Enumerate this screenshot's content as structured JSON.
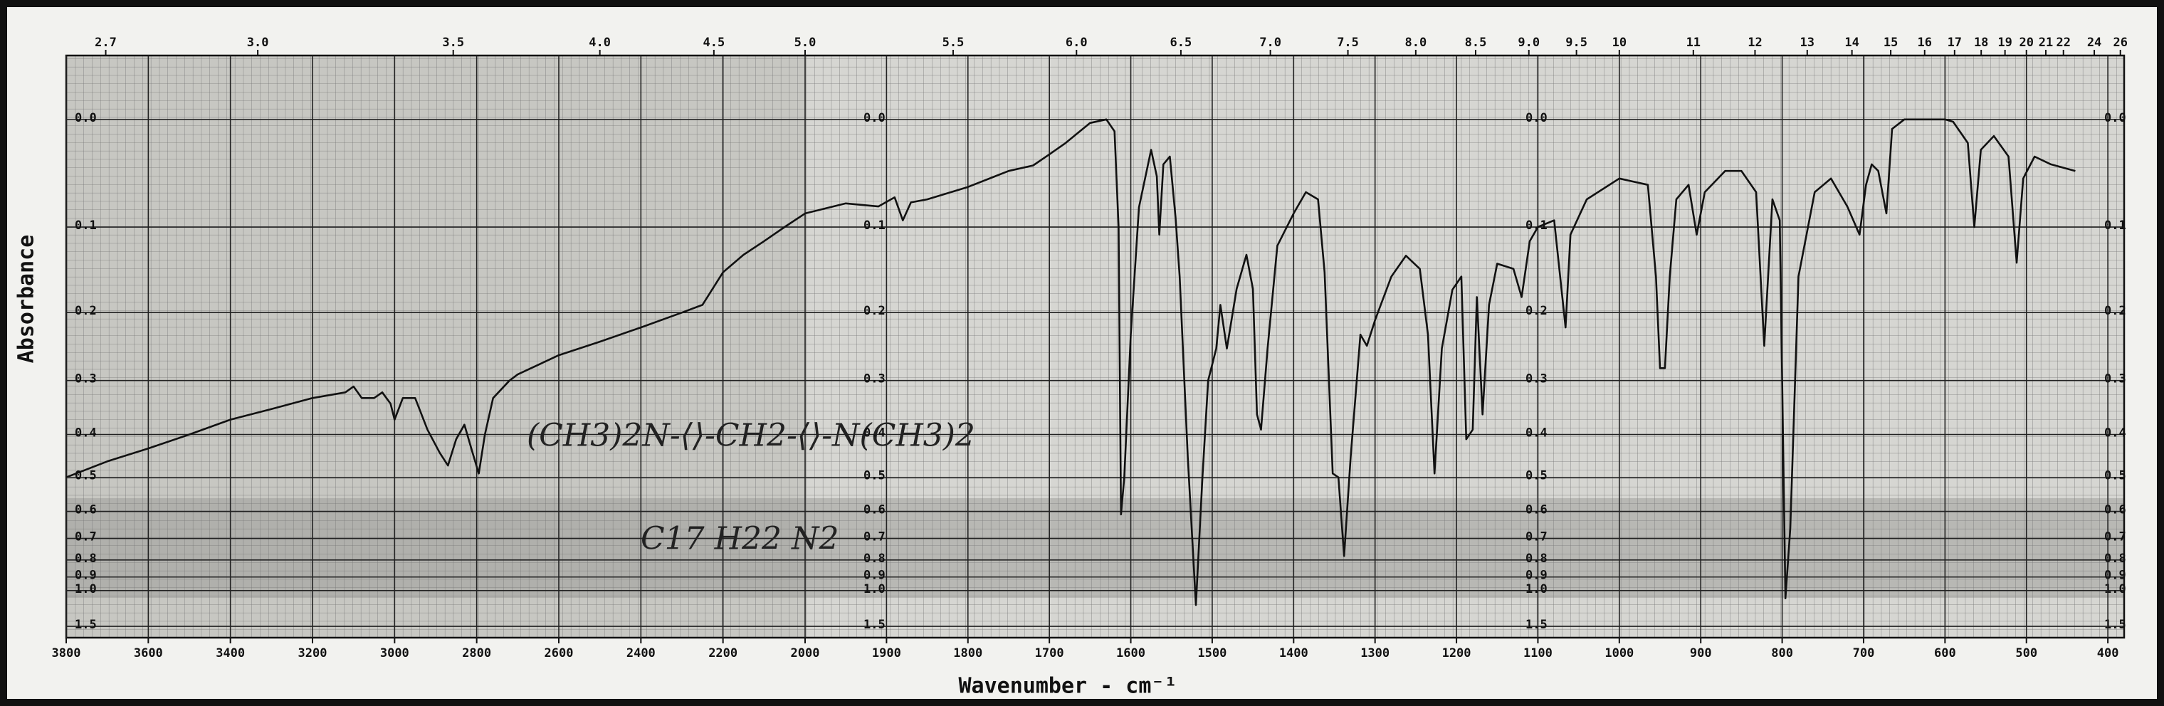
{
  "chart_data": {
    "type": "line",
    "yscale": "absorbance",
    "xscale_break": 2000,
    "ylabel": "Absorbance",
    "xlabel": "Wavenumber - cm⁻¹",
    "annotations": [
      "(CH3)2N-⟨⟩-CH2-⟨⟩-N(CH3)2",
      "C17 H22 N2"
    ],
    "xlim": [
      3800,
      380
    ],
    "xticks": [
      3800,
      3600,
      3400,
      3200,
      3000,
      2800,
      2600,
      2400,
      2200,
      2000,
      1900,
      1800,
      1700,
      1600,
      1500,
      1400,
      1300,
      1200,
      1100,
      1000,
      900,
      800,
      700,
      600,
      500,
      400
    ],
    "x2ticks": [
      2.7,
      {
        "value": 3,
        "label": "3.0"
      },
      3.5,
      {
        "value": 4,
        "label": "4.0"
      },
      4.5,
      {
        "value": 5,
        "label": "5.0"
      },
      5.5,
      {
        "value": 6,
        "label": "6.0"
      },
      6.5,
      {
        "value": 7,
        "label": "7.0"
      },
      7.5,
      {
        "value": 8,
        "label": "8.0"
      },
      8.5,
      {
        "value": 9,
        "label": "9.0"
      },
      9.5,
      10,
      11,
      12,
      13,
      14,
      15,
      16,
      17,
      18,
      19,
      20,
      21,
      22,
      24,
      26
    ],
    "ylim": [
      -0.05,
      2
    ],
    "yticks": [
      {
        "value": 0,
        "label": "0.0"
      },
      0.1,
      0.2,
      0.3,
      0.4,
      0.5,
      0.6,
      0.7,
      0.8,
      0.9,
      {
        "value": 1,
        "label": "1.0"
      },
      1.5
    ],
    "grid": true,
    "x": [
      3800,
      3700,
      3600,
      3500,
      3400,
      3300,
      3200,
      3120,
      3100,
      3080,
      3050,
      3030,
      3010,
      3000,
      2980,
      2950,
      2920,
      2890,
      2870,
      2850,
      2830,
      2810,
      2795,
      2780,
      2760,
      2720,
      2700,
      2600,
      2500,
      2400,
      2300,
      2250,
      2200,
      2150,
      2100,
      2050,
      2000,
      1950,
      1910,
      1890,
      1880,
      1870,
      1850,
      1800,
      1750,
      1720,
      1700,
      1680,
      1650,
      1630,
      1620,
      1615,
      1612,
      1608,
      1600,
      1590,
      1575,
      1568,
      1565,
      1560,
      1552,
      1545,
      1540,
      1530,
      1520,
      1512,
      1505,
      1495,
      1490,
      1482,
      1470,
      1458,
      1450,
      1445,
      1440,
      1432,
      1420,
      1400,
      1385,
      1370,
      1362,
      1352,
      1345,
      1338,
      1330,
      1318,
      1310,
      1300,
      1280,
      1262,
      1245,
      1235,
      1227,
      1218,
      1205,
      1194,
      1188,
      1180,
      1175,
      1168,
      1160,
      1150,
      1130,
      1120,
      1110,
      1100,
      1080,
      1066,
      1060,
      1040,
      1000,
      965,
      955,
      950,
      944,
      938,
      930,
      915,
      905,
      895,
      870,
      850,
      832,
      822,
      812,
      803,
      796,
      790,
      780,
      760,
      740,
      720,
      705,
      697,
      690,
      682,
      672,
      665,
      650,
      600,
      590,
      572,
      564,
      556,
      540,
      522,
      512,
      504,
      490,
      470,
      440
    ],
    "series": [
      {
        "name": "Absorbance",
        "color": "#111111",
        "values": [
          0.5,
          0.46,
          0.43,
          0.4,
          0.37,
          0.35,
          0.33,
          0.32,
          0.31,
          0.33,
          0.33,
          0.32,
          0.34,
          0.37,
          0.33,
          0.33,
          0.39,
          0.44,
          0.47,
          0.41,
          0.38,
          0.44,
          0.49,
          0.4,
          0.33,
          0.3,
          0.29,
          0.26,
          0.24,
          0.22,
          0.2,
          0.19,
          0.15,
          0.13,
          0.115,
          0.1,
          0.086,
          0.076,
          0.079,
          0.07,
          0.093,
          0.075,
          0.072,
          0.06,
          0.045,
          0.04,
          0.03,
          0.02,
          0.003,
          0.0,
          0.01,
          0.1,
          0.61,
          0.5,
          0.23,
          0.08,
          0.026,
          0.05,
          0.108,
          0.039,
          0.032,
          0.09,
          0.155,
          0.45,
          1.14,
          0.5,
          0.3,
          0.25,
          0.19,
          0.25,
          0.17,
          0.13,
          0.17,
          0.36,
          0.39,
          0.25,
          0.12,
          0.086,
          0.065,
          0.072,
          0.15,
          0.49,
          0.5,
          0.78,
          0.45,
          0.23,
          0.246,
          0.21,
          0.155,
          0.131,
          0.146,
          0.23,
          0.49,
          0.25,
          0.171,
          0.155,
          0.41,
          0.39,
          0.18,
          0.36,
          0.19,
          0.14,
          0.146,
          0.18,
          0.115,
          0.1,
          0.093,
          0.22,
          0.108,
          0.072,
          0.052,
          0.058,
          0.155,
          0.28,
          0.28,
          0.155,
          0.072,
          0.058,
          0.108,
          0.065,
          0.045,
          0.045,
          0.065,
          0.246,
          0.072,
          0.093,
          1.07,
          0.66,
          0.155,
          0.065,
          0.052,
          0.079,
          0.108,
          0.058,
          0.039,
          0.045,
          0.086,
          0.008,
          0.0,
          0.0,
          0.002,
          0.02,
          0.1,
          0.026,
          0.014,
          0.032,
          0.139,
          0.052,
          0.032,
          0.039,
          0.045
        ]
      }
    ]
  }
}
